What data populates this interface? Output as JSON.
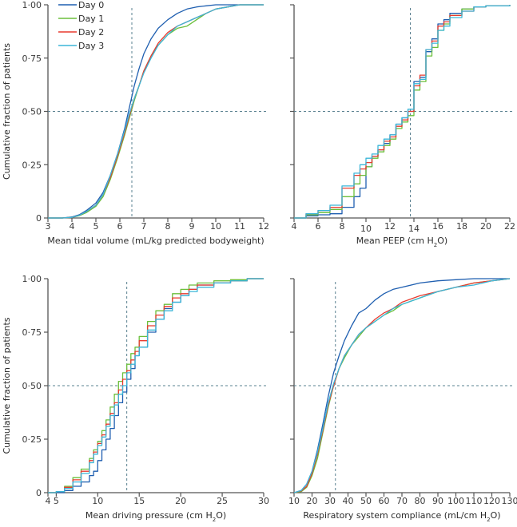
{
  "chart_data": [
    {
      "type": "line",
      "panel": "top-left",
      "xlabel": "Mean tidal volume (mL/kg predicted bodyweight)",
      "ylabel": "Cumulative fraction of patients",
      "xlim": [
        3,
        12
      ],
      "ylim": [
        0,
        1
      ],
      "xticks": [
        3,
        4,
        5,
        6,
        7,
        8,
        9,
        10,
        11,
        12
      ],
      "xtick_labels": [
        "3",
        "4",
        "5",
        "6",
        "7",
        "8",
        "9",
        "10",
        "11",
        "12"
      ],
      "yticks": [
        0,
        0.25,
        0.5,
        0.75,
        1
      ],
      "ytick_labels": [
        "0",
        "0·25",
        "0·50",
        "0·75",
        "1·00"
      ],
      "median_x": 6.5,
      "median_y": 0.5,
      "legend": {
        "placement": "top-left",
        "entries": [
          "Day 0",
          "Day 1",
          "Day 2",
          "Day 3"
        ]
      },
      "series": [
        {
          "name": "Day 0",
          "x": [
            3,
            3.6,
            4,
            4.3,
            4.6,
            5,
            5.3,
            5.6,
            5.9,
            6.2,
            6.4,
            6.6,
            6.8,
            7,
            7.3,
            7.6,
            8,
            8.4,
            8.8,
            9.2,
            9.6,
            10,
            10.5,
            11,
            12
          ],
          "y": [
            0,
            0,
            0.005,
            0.015,
            0.035,
            0.07,
            0.12,
            0.2,
            0.3,
            0.42,
            0.52,
            0.62,
            0.7,
            0.77,
            0.84,
            0.89,
            0.93,
            0.96,
            0.98,
            0.99,
            0.995,
            1,
            1,
            1,
            1
          ]
        },
        {
          "name": "Day 1",
          "x": [
            3,
            3.6,
            4,
            4.3,
            4.6,
            5,
            5.3,
            5.6,
            5.9,
            6.2,
            6.4,
            6.6,
            6.8,
            7,
            7.3,
            7.6,
            8,
            8.4,
            8.8,
            9.2,
            9.6,
            10,
            10.5,
            11,
            12
          ],
          "y": [
            0,
            0,
            0.003,
            0.01,
            0.025,
            0.055,
            0.1,
            0.18,
            0.28,
            0.39,
            0.47,
            0.55,
            0.62,
            0.69,
            0.76,
            0.81,
            0.86,
            0.89,
            0.9,
            0.93,
            0.96,
            0.98,
            0.99,
            1,
            1
          ]
        },
        {
          "name": "Day 2",
          "x": [
            3,
            3.6,
            4,
            4.3,
            4.6,
            5,
            5.3,
            5.6,
            5.9,
            6.2,
            6.4,
            6.6,
            6.8,
            7,
            7.3,
            7.6,
            8,
            8.4,
            8.8,
            9.2,
            9.6,
            10,
            10.5,
            11,
            12
          ],
          "y": [
            0,
            0,
            0.003,
            0.012,
            0.03,
            0.06,
            0.11,
            0.19,
            0.29,
            0.4,
            0.48,
            0.56,
            0.62,
            0.69,
            0.76,
            0.82,
            0.87,
            0.9,
            0.92,
            0.94,
            0.96,
            0.98,
            0.99,
            1,
            1
          ]
        },
        {
          "name": "Day 3",
          "x": [
            3,
            3.6,
            4,
            4.3,
            4.6,
            5,
            5.3,
            5.6,
            5.9,
            6.2,
            6.4,
            6.6,
            6.8,
            7,
            7.3,
            7.6,
            8,
            8.4,
            8.8,
            9.2,
            9.6,
            10,
            10.5,
            11,
            12
          ],
          "y": [
            0,
            0,
            0.003,
            0.012,
            0.03,
            0.06,
            0.11,
            0.2,
            0.3,
            0.41,
            0.49,
            0.56,
            0.62,
            0.68,
            0.75,
            0.81,
            0.86,
            0.9,
            0.92,
            0.94,
            0.96,
            0.98,
            0.99,
            1,
            1
          ]
        }
      ]
    },
    {
      "type": "line",
      "panel": "top-right",
      "xlabel": "Mean PEEP (cm H2O)",
      "xlabel_main": "Mean PEEP (cm H",
      "xlabel_sub": "2",
      "xlabel_end": "O)",
      "xlim": [
        4,
        22
      ],
      "ylim": [
        0,
        1
      ],
      "xticks": [
        4,
        6,
        8,
        10,
        12,
        14,
        16,
        18,
        20,
        22
      ],
      "xtick_labels": [
        "4",
        "6",
        "8",
        "10",
        "12",
        "14",
        "16",
        "18",
        "20",
        "22"
      ],
      "yticks": [
        0,
        0.25,
        0.5,
        0.75,
        1
      ],
      "median_x": 13.7,
      "median_y": 0.5,
      "step": true,
      "series": [
        {
          "name": "Day 0",
          "x": [
            4,
            5,
            6,
            7,
            8,
            9,
            9.5,
            10,
            10.5,
            11,
            11.5,
            12,
            12.5,
            13,
            13.5,
            14,
            14.5,
            15,
            15.5,
            16,
            16.5,
            17,
            18,
            19,
            20,
            22
          ],
          "y": [
            0,
            0.01,
            0.015,
            0.02,
            0.05,
            0.1,
            0.14,
            0.24,
            0.29,
            0.32,
            0.35,
            0.39,
            0.44,
            0.47,
            0.5,
            0.64,
            0.66,
            0.78,
            0.84,
            0.91,
            0.93,
            0.96,
            0.98,
            0.99,
            0.995,
            1
          ]
        },
        {
          "name": "Day 1",
          "x": [
            4,
            5,
            6,
            7,
            8,
            9,
            9.5,
            10,
            10.5,
            11,
            11.5,
            12,
            12.5,
            13,
            13.5,
            14,
            14.5,
            15,
            15.5,
            16,
            16.5,
            17,
            18,
            19,
            20,
            22
          ],
          "y": [
            0,
            0.015,
            0.025,
            0.04,
            0.1,
            0.16,
            0.2,
            0.24,
            0.28,
            0.31,
            0.34,
            0.37,
            0.42,
            0.45,
            0.48,
            0.6,
            0.64,
            0.76,
            0.8,
            0.88,
            0.91,
            0.95,
            0.98,
            0.99,
            0.995,
            1
          ]
        },
        {
          "name": "Day 2",
          "x": [
            4,
            5,
            6,
            7,
            8,
            9,
            9.5,
            10,
            10.5,
            11,
            11.5,
            12,
            12.5,
            13,
            13.5,
            14,
            14.5,
            15,
            15.5,
            16,
            16.5,
            17,
            18,
            19,
            20,
            22
          ],
          "y": [
            0,
            0.02,
            0.035,
            0.05,
            0.14,
            0.2,
            0.23,
            0.26,
            0.29,
            0.32,
            0.36,
            0.38,
            0.43,
            0.46,
            0.5,
            0.62,
            0.67,
            0.79,
            0.83,
            0.9,
            0.92,
            0.95,
            0.97,
            0.99,
            0.995,
            1
          ]
        },
        {
          "name": "Day 3",
          "x": [
            4,
            5,
            6,
            7,
            8,
            9,
            9.5,
            10,
            10.5,
            11,
            11.5,
            12,
            12.5,
            13,
            13.5,
            14,
            14.5,
            15,
            15.5,
            16,
            16.5,
            17,
            18,
            19,
            20,
            22
          ],
          "y": [
            0,
            0.02,
            0.035,
            0.06,
            0.15,
            0.21,
            0.25,
            0.28,
            0.3,
            0.34,
            0.37,
            0.39,
            0.44,
            0.47,
            0.51,
            0.63,
            0.65,
            0.79,
            0.82,
            0.88,
            0.9,
            0.94,
            0.97,
            0.99,
            0.995,
            1
          ]
        }
      ]
    },
    {
      "type": "line",
      "panel": "bottom-left",
      "xlabel": "Mean driving pressure (cm H2O)",
      "xlabel_main": "Mean driving pressure (cm H",
      "xlabel_sub": "2",
      "xlabel_end": "O)",
      "ylabel": "Cumulative fraction of patients",
      "xlim": [
        4,
        30
      ],
      "ylim": [
        0,
        1
      ],
      "xticks": [
        4,
        5,
        10,
        15,
        20,
        25,
        30
      ],
      "xtick_labels": [
        "4",
        "5",
        "10",
        "15",
        "20",
        "25",
        "30"
      ],
      "yticks": [
        0,
        0.25,
        0.5,
        0.75,
        1
      ],
      "ytick_labels": [
        "0",
        "0·25",
        "0·50",
        "0·75",
        "1·00"
      ],
      "median_x": 13.5,
      "median_y": 0.5,
      "step": true,
      "series": [
        {
          "name": "Day 0",
          "x": [
            4,
            5,
            6,
            7,
            8,
            9,
            9.5,
            10,
            10.5,
            11,
            11.5,
            12,
            12.5,
            13,
            13.5,
            14,
            14.5,
            15,
            16,
            17,
            18,
            19,
            20,
            21,
            22,
            24,
            26,
            28,
            30
          ],
          "y": [
            0,
            0,
            0.01,
            0.03,
            0.05,
            0.08,
            0.1,
            0.15,
            0.2,
            0.25,
            0.3,
            0.36,
            0.42,
            0.47,
            0.53,
            0.58,
            0.64,
            0.68,
            0.75,
            0.81,
            0.86,
            0.89,
            0.92,
            0.95,
            0.97,
            0.98,
            0.99,
            1,
            1
          ]
        },
        {
          "name": "Day 1",
          "x": [
            4,
            5,
            6,
            7,
            8,
            9,
            9.5,
            10,
            10.5,
            11,
            11.5,
            12,
            12.5,
            13,
            13.5,
            14,
            14.5,
            15,
            16,
            17,
            18,
            19,
            20,
            21,
            22,
            24,
            26,
            28,
            30
          ],
          "y": [
            0,
            0.005,
            0.03,
            0.07,
            0.11,
            0.16,
            0.2,
            0.24,
            0.29,
            0.34,
            0.4,
            0.46,
            0.52,
            0.56,
            0.6,
            0.65,
            0.68,
            0.73,
            0.8,
            0.85,
            0.88,
            0.93,
            0.95,
            0.97,
            0.98,
            0.99,
            0.995,
            1,
            1
          ]
        },
        {
          "name": "Day 2",
          "x": [
            4,
            5,
            6,
            7,
            8,
            9,
            9.5,
            10,
            10.5,
            11,
            11.5,
            12,
            12.5,
            13,
            13.5,
            14,
            14.5,
            15,
            16,
            17,
            18,
            19,
            20,
            21,
            22,
            24,
            26,
            28,
            30
          ],
          "y": [
            0,
            0.005,
            0.025,
            0.06,
            0.1,
            0.15,
            0.19,
            0.23,
            0.27,
            0.32,
            0.37,
            0.42,
            0.48,
            0.53,
            0.57,
            0.62,
            0.66,
            0.71,
            0.78,
            0.83,
            0.87,
            0.91,
            0.93,
            0.95,
            0.97,
            0.98,
            0.99,
            1,
            1
          ]
        },
        {
          "name": "Day 3",
          "x": [
            4,
            5,
            6,
            7,
            8,
            9,
            9.5,
            10,
            10.5,
            11,
            11.5,
            12,
            12.5,
            13,
            13.5,
            14,
            14.5,
            15,
            16,
            17,
            18,
            19,
            20,
            21,
            22,
            24,
            26,
            28,
            30
          ],
          "y": [
            0,
            0.005,
            0.02,
            0.05,
            0.09,
            0.14,
            0.18,
            0.22,
            0.26,
            0.31,
            0.36,
            0.41,
            0.46,
            0.5,
            0.56,
            0.6,
            0.64,
            0.68,
            0.76,
            0.81,
            0.85,
            0.89,
            0.92,
            0.94,
            0.96,
            0.98,
            0.99,
            1,
            1
          ]
        }
      ]
    },
    {
      "type": "line",
      "panel": "bottom-right",
      "xlabel": "Respiratory system compliance (mL/cm H2O)",
      "xlabel_main": "Respiratory system compliance (mL/cm H",
      "xlabel_sub": "2",
      "xlabel_end": "O)",
      "xlim": [
        10,
        130
      ],
      "ylim": [
        0,
        1
      ],
      "xticks": [
        10,
        20,
        30,
        40,
        50,
        60,
        70,
        80,
        90,
        100,
        110,
        120,
        130
      ],
      "xtick_labels": [
        "10",
        "20",
        "30",
        "40",
        "50",
        "60",
        "70",
        "80",
        "90",
        "100",
        "110",
        "120",
        "130"
      ],
      "yticks": [
        0,
        0.25,
        0.5,
        0.75,
        1
      ],
      "median_x": 33,
      "median_y": 0.5,
      "series": [
        {
          "name": "Day 0",
          "x": [
            10,
            14,
            17,
            20,
            23,
            26,
            29,
            32,
            35,
            38,
            42,
            46,
            50,
            55,
            60,
            65,
            70,
            80,
            90,
            100,
            110,
            120,
            130
          ],
          "y": [
            0,
            0.01,
            0.04,
            0.1,
            0.2,
            0.32,
            0.45,
            0.56,
            0.64,
            0.71,
            0.78,
            0.84,
            0.86,
            0.9,
            0.93,
            0.95,
            0.96,
            0.98,
            0.99,
            0.995,
            1,
            1,
            1
          ]
        },
        {
          "name": "Day 1",
          "x": [
            10,
            14,
            17,
            20,
            23,
            26,
            29,
            32,
            35,
            38,
            42,
            46,
            50,
            55,
            60,
            65,
            70,
            80,
            90,
            100,
            110,
            120,
            130
          ],
          "y": [
            0,
            0.005,
            0.025,
            0.08,
            0.16,
            0.28,
            0.4,
            0.5,
            0.58,
            0.63,
            0.69,
            0.73,
            0.77,
            0.8,
            0.83,
            0.85,
            0.88,
            0.91,
            0.94,
            0.96,
            0.98,
            0.99,
            1
          ]
        },
        {
          "name": "Day 2",
          "x": [
            10,
            14,
            17,
            20,
            23,
            26,
            29,
            32,
            35,
            38,
            42,
            46,
            50,
            55,
            60,
            65,
            70,
            80,
            90,
            100,
            110,
            120,
            130
          ],
          "y": [
            0,
            0.008,
            0.03,
            0.09,
            0.18,
            0.29,
            0.41,
            0.5,
            0.58,
            0.64,
            0.69,
            0.74,
            0.77,
            0.81,
            0.84,
            0.86,
            0.89,
            0.92,
            0.94,
            0.96,
            0.98,
            0.99,
            1
          ]
        },
        {
          "name": "Day 3",
          "x": [
            10,
            14,
            17,
            20,
            23,
            26,
            29,
            32,
            35,
            38,
            42,
            46,
            50,
            55,
            60,
            65,
            70,
            80,
            90,
            100,
            110,
            120,
            130
          ],
          "y": [
            0,
            0.01,
            0.04,
            0.1,
            0.19,
            0.3,
            0.42,
            0.51,
            0.58,
            0.64,
            0.69,
            0.74,
            0.77,
            0.8,
            0.83,
            0.86,
            0.88,
            0.91,
            0.94,
            0.96,
            0.97,
            0.99,
            1
          ]
        }
      ]
    }
  ],
  "colors": {
    "Day 0": "#1f5fb0",
    "Day 1": "#6bbf3b",
    "Day 2": "#e83a2e",
    "Day 3": "#3bb6d8",
    "axis": "#555555",
    "reference_line": "#5a8090"
  }
}
